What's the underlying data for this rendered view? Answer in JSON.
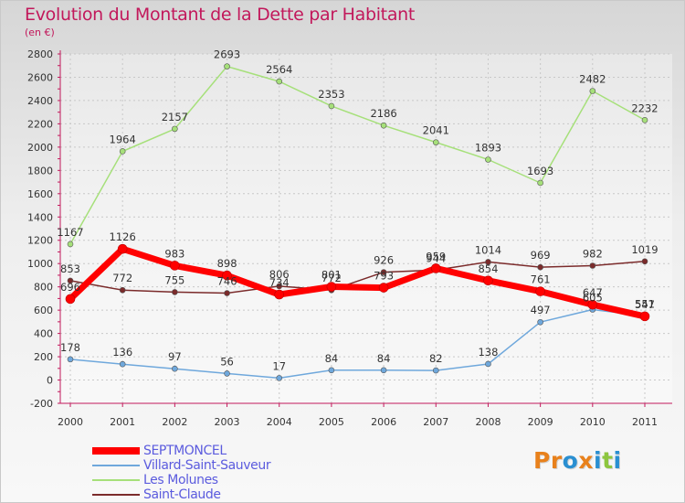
{
  "title": "Evolution du Montant de la Dette par Habitant",
  "subtitle": "(en €)",
  "logo_text": "Proxiti",
  "logo_colors": [
    "#e8811c",
    "#e8811c",
    "#2a8fd1",
    "#e8811c",
    "#2a8fd1",
    "#8dc63f",
    "#2a8fd1"
  ],
  "chart_data": {
    "type": "line",
    "x": [
      "2000",
      "2001",
      "2002",
      "2003",
      "2004",
      "2005",
      "2006",
      "2007",
      "2008",
      "2009",
      "2010",
      "2011"
    ],
    "ylim": [
      -200,
      2800
    ],
    "yticks": [
      -200,
      0,
      200,
      400,
      600,
      800,
      1000,
      1200,
      1400,
      1600,
      1800,
      2000,
      2200,
      2400,
      2600,
      2800
    ],
    "grid": true,
    "legend_position": "bottom-left",
    "series": [
      {
        "name": "SEPTMONCEL",
        "color": "#ff0000",
        "legend_color": "#5b5bde",
        "values": [
          696,
          1126,
          983,
          898,
          734,
          801,
          793,
          959,
          854,
          761,
          647,
          547
        ],
        "labels": [
          "696",
          "1126",
          "983",
          "898",
          "734",
          "801",
          "793",
          "959",
          "854",
          "761",
          "647",
          "547"
        ]
      },
      {
        "name": "Villard-Saint-Sauveur",
        "color": "#6fa8dc",
        "legend_color": "#5b5bde",
        "values": [
          178,
          136,
          97,
          56,
          17,
          84,
          84,
          82,
          138,
          497,
          605,
          551
        ],
        "labels": [
          "178",
          "136",
          "97",
          "56",
          "17",
          "84",
          "84",
          "82",
          "138",
          "497",
          "605",
          "551"
        ]
      },
      {
        "name": "Les Molunes",
        "color": "#a6e07a",
        "legend_color": "#5b5bde",
        "values": [
          1167,
          1964,
          2157,
          2693,
          2564,
          2353,
          2186,
          2041,
          1893,
          1693,
          2482,
          2232
        ],
        "labels": [
          "1167",
          "1964",
          "2157",
          "2693",
          "2564",
          "2353",
          "2186",
          "2041",
          "1893",
          "1693",
          "2482",
          "2232"
        ]
      },
      {
        "name": "Saint-Claude",
        "color": "#7b2b2b",
        "legend_color": "#5b5bde",
        "values": [
          853,
          772,
          755,
          746,
          806,
          772,
          926,
          944,
          1014,
          969,
          982,
          1019
        ],
        "labels": [
          "853",
          "772",
          "755",
          "746",
          "806",
          "772",
          "926",
          "944",
          "1014",
          "969",
          "982",
          "1019"
        ]
      }
    ]
  }
}
